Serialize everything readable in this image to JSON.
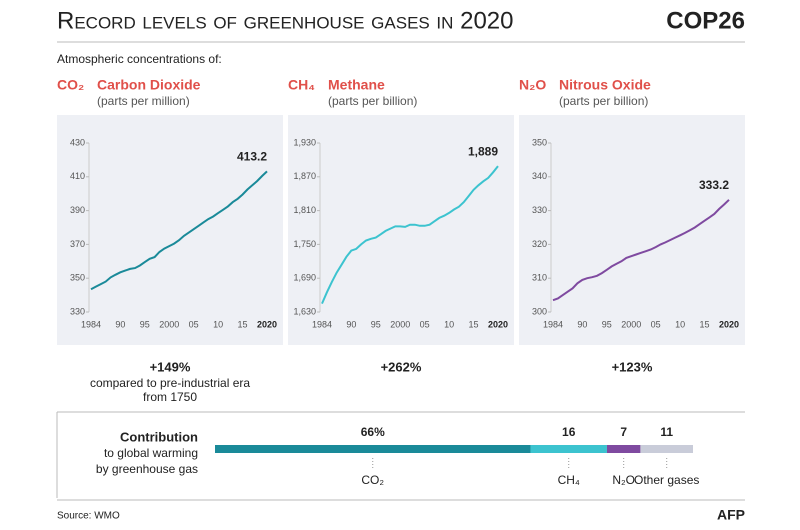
{
  "header": {
    "title": "Record levels of greenhouse gases in 2020",
    "logo": "COP26",
    "subtitle": "Atmospheric concentrations of:"
  },
  "chart_data": [
    {
      "type": "line",
      "formula": "CO₂",
      "title": "Carbon Dioxide",
      "subtitle": "(parts per million)",
      "color": "#1a8a99",
      "x": [
        1984,
        1985,
        1986,
        1987,
        1988,
        1989,
        1990,
        1991,
        1992,
        1993,
        1994,
        1995,
        1996,
        1997,
        1998,
        1999,
        2000,
        2001,
        2002,
        2003,
        2004,
        2005,
        2006,
        2007,
        2008,
        2009,
        2010,
        2011,
        2012,
        2013,
        2014,
        2015,
        2016,
        2017,
        2018,
        2019,
        2020
      ],
      "values": [
        343.5,
        345,
        346.5,
        348,
        350.5,
        352,
        353.5,
        354.5,
        355.5,
        356,
        357.5,
        359.5,
        361.5,
        362.5,
        365.5,
        367.5,
        369,
        370.5,
        372.5,
        375,
        377,
        379,
        381,
        383,
        385,
        386.5,
        388.5,
        390.5,
        392.5,
        395,
        397,
        399.5,
        402.5,
        405,
        407.5,
        410.5,
        413.2
      ],
      "xlim": [
        1984,
        2020
      ],
      "xticks": [
        1984,
        {
          "value": 1990,
          "label": "90"
        },
        {
          "value": 1995,
          "label": "95"
        },
        2000,
        {
          "value": 2005,
          "label": "05"
        },
        {
          "value": 2010,
          "label": "10"
        },
        {
          "value": 2015,
          "label": "15"
        },
        2020
      ],
      "ylim": [
        330,
        430
      ],
      "yticks": [
        330,
        350,
        370,
        390,
        410,
        430
      ],
      "change": "+149%",
      "change_note": [
        "compared to pre-industrial era",
        "from 1750"
      ]
    },
    {
      "type": "line",
      "formula": "CH₄",
      "title": "Methane",
      "subtitle": "(parts per billion)",
      "color": "#3cc3cf",
      "x": [
        1984,
        1985,
        1986,
        1987,
        1988,
        1989,
        1990,
        1991,
        1992,
        1993,
        1994,
        1995,
        1996,
        1997,
        1998,
        1999,
        2000,
        2001,
        2002,
        2003,
        2004,
        2005,
        2006,
        2007,
        2008,
        2009,
        2010,
        2011,
        2012,
        2013,
        2014,
        2015,
        2016,
        2017,
        2018,
        2019,
        2020
      ],
      "values": [
        1645,
        1665,
        1683,
        1700,
        1714,
        1728,
        1739,
        1742,
        1750,
        1757,
        1760,
        1762,
        1768,
        1774,
        1778,
        1782,
        1782,
        1781,
        1785,
        1785,
        1783,
        1783,
        1785,
        1791,
        1797,
        1801,
        1806,
        1812,
        1817,
        1825,
        1836,
        1847,
        1855,
        1862,
        1868,
        1878,
        1889
      ],
      "value_labels": [
        null,
        null,
        null,
        null,
        null,
        null,
        null,
        null,
        null,
        null,
        null,
        null,
        null,
        null,
        null,
        null,
        null,
        null,
        null,
        null,
        null,
        null,
        null,
        null,
        null,
        null,
        null,
        null,
        null,
        null,
        null,
        null,
        null,
        null,
        null,
        null,
        "1,889"
      ],
      "xlim": [
        1984,
        2020
      ],
      "xticks": [
        1984,
        {
          "value": 1990,
          "label": "90"
        },
        {
          "value": 1995,
          "label": "95"
        },
        2000,
        {
          "value": 2005,
          "label": "05"
        },
        {
          "value": 2010,
          "label": "10"
        },
        {
          "value": 2015,
          "label": "15"
        },
        2020
      ],
      "ylim": [
        1630,
        1930
      ],
      "yticks": [
        {
          "value": 1630,
          "label": "1,630"
        },
        {
          "value": 1690,
          "label": "1,690"
        },
        {
          "value": 1750,
          "label": "1,750"
        },
        {
          "value": 1810,
          "label": "1,810"
        },
        {
          "value": 1870,
          "label": "1,870"
        },
        {
          "value": 1930,
          "label": "1,930"
        }
      ],
      "change": "+262%"
    },
    {
      "type": "line",
      "formula": "N₂O",
      "title": "Nitrous Oxide",
      "subtitle": "(parts per billion)",
      "color": "#7f4aa0",
      "x": [
        1984,
        1985,
        1986,
        1987,
        1988,
        1989,
        1990,
        1991,
        1992,
        1993,
        1994,
        1995,
        1996,
        1997,
        1998,
        1999,
        2000,
        2001,
        2002,
        2003,
        2004,
        2005,
        2006,
        2007,
        2008,
        2009,
        2010,
        2011,
        2012,
        2013,
        2014,
        2015,
        2016,
        2017,
        2018,
        2019,
        2020
      ],
      "values": [
        303.5,
        304,
        305,
        306,
        307,
        308.5,
        309.5,
        310,
        310.3,
        310.7,
        311.5,
        312.5,
        313.5,
        314.3,
        315,
        316,
        316.5,
        317,
        317.5,
        318,
        318.5,
        319.2,
        320,
        320.6,
        321.3,
        322,
        322.7,
        323.4,
        324.2,
        325,
        326,
        327,
        328,
        329,
        330.5,
        331.8,
        333.2
      ],
      "xlim": [
        1984,
        2020
      ],
      "xticks": [
        1984,
        {
          "value": 1990,
          "label": "90"
        },
        {
          "value": 1995,
          "label": "95"
        },
        2000,
        {
          "value": 2005,
          "label": "05"
        },
        {
          "value": 2010,
          "label": "10"
        },
        {
          "value": 2015,
          "label": "15"
        },
        2020
      ],
      "ylim": [
        300,
        350
      ],
      "yticks": [
        300,
        310,
        320,
        330,
        340,
        350
      ],
      "change": "+123%"
    },
    {
      "type": "stacked-bar",
      "title": "Contribution",
      "subtitle": [
        "to global warming",
        "by greenhouse gas"
      ],
      "series": [
        {
          "name": "CO₂",
          "color": "#1a8a99",
          "values": [
            66
          ],
          "value_labels": [
            "66%"
          ]
        },
        {
          "name": "CH₄",
          "color": "#3cc3cf",
          "values": [
            16
          ]
        },
        {
          "name": "N₂O",
          "color": "#7f4aa0",
          "values": [
            7
          ]
        },
        {
          "name": "Other gases",
          "color": "#c9ccd9",
          "values": [
            11
          ]
        }
      ]
    }
  ],
  "footer": {
    "source": "Source: WMO",
    "agency": "AFP"
  }
}
